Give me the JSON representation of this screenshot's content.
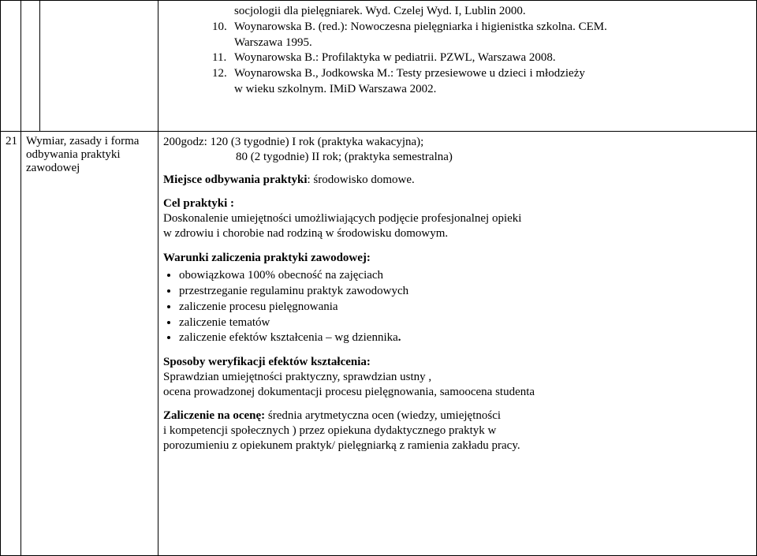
{
  "row1": {
    "refs": [
      {
        "num": "",
        "text_a": "socjologii dla pielęgniarek. Wyd. Czelej Wyd. I, Lublin 2000."
      },
      {
        "num": "10.",
        "text_a": "Woynarowska B. (red.): Nowoczesna pielęgniarka i higienistka szkolna. CEM.",
        "text_b": "Warszawa 1995."
      },
      {
        "num": "11.",
        "text_a": "Woynarowska B.: Profilaktyka w pediatrii. PZWL, Warszawa 2008."
      },
      {
        "num": "12.",
        "text_a": "Woynarowska B., Jodkowska M.: Testy przesiewowe u dzieci i młodzieży",
        "text_b": "w wieku szkolnym. IMiD  Warszawa 2002."
      }
    ]
  },
  "row2": {
    "num": "21",
    "header": "Wymiar, zasady i forma odbywania praktyki zawodowej",
    "hours_line1": "200godz:  120 (3 tygodnie) I rok (praktyka wakacyjna);",
    "hours_line2": "80 (2 tygodnie) II rok; (praktyka semestralna)",
    "miejsce_label": "Miejsce odbywania praktyki",
    "miejsce_value": ": środowisko domowe.",
    "cel_label": "Cel praktyki :",
    "cel_text1": "Doskonalenie umiejętności umożliwiających podjęcie profesjonalnej opieki",
    "cel_text2": "w zdrowiu i chorobie nad rodziną w środowisku domowym.",
    "warunki_label": "Warunki zaliczenia praktyki zawodowej:",
    "warunki_items": [
      "obowiązkowa 100% obecność na zajęciach",
      "przestrzeganie regulaminu praktyk zawodowych",
      "zaliczenie procesu pielęgnowania",
      "zaliczenie tematów",
      "zaliczenie efektów kształcenia – wg dziennika"
    ],
    "warunki_tail": ".",
    "sposoby_label": "Sposoby weryfikacji efektów kształcenia:",
    "sposoby_text1": "Sprawdzian umiejętności praktyczny, sprawdzian ustny ,",
    "sposoby_text2": "ocena prowadzonej dokumentacji procesu pielęgnowania, samoocena studenta",
    "zalicz_label": "Zaliczenie na ocenę:",
    "zalicz_text1": " średnia arytmetyczna ocen (wiedzy, umiejętności",
    "zalicz_text2": "i kompetencji społecznych )  przez opiekuna dydaktycznego praktyk w",
    "zalicz_text3": "porozumieniu z opiekunem praktyk/ pielęgniarką z ramienia zakładu pracy."
  }
}
